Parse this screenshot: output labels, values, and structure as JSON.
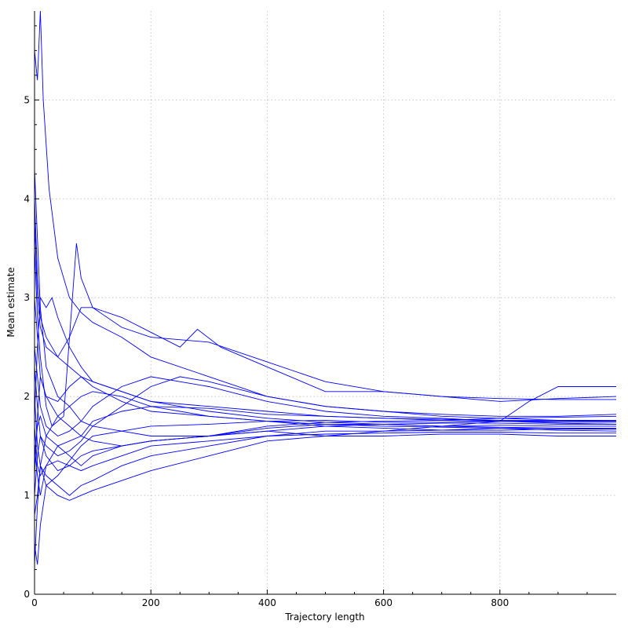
{
  "chart_data": {
    "type": "line",
    "xlabel": "Trajectory length",
    "ylabel": "Mean estimate",
    "xlim": [
      0,
      1000
    ],
    "ylim": [
      0,
      5.9
    ],
    "x_ticks": [
      0,
      200,
      400,
      600,
      800
    ],
    "y_ticks": [
      0,
      1,
      2,
      3,
      4,
      5
    ],
    "grid": true,
    "legend": "none",
    "line_color": "#0000ff",
    "series": [
      {
        "x": [
          0,
          5,
          10,
          15,
          25,
          40,
          60,
          80,
          100,
          150,
          200,
          300,
          400,
          500,
          600,
          700,
          800,
          900,
          1000
        ],
        "y": [
          5.5,
          5.2,
          5.9,
          5.0,
          4.1,
          3.4,
          3.0,
          2.85,
          2.75,
          2.6,
          2.4,
          2.2,
          2.0,
          1.9,
          1.85,
          1.8,
          1.78,
          1.76,
          1.75
        ]
      },
      {
        "x": [
          0,
          5,
          10,
          20,
          30,
          50,
          72,
          80,
          100,
          150,
          200,
          300,
          400,
          500,
          600,
          700,
          800,
          900,
          1000
        ],
        "y": [
          3.5,
          2.8,
          2.4,
          1.9,
          1.7,
          1.8,
          3.55,
          3.2,
          2.9,
          2.7,
          2.6,
          2.55,
          2.35,
          2.15,
          2.05,
          2.0,
          1.98,
          1.97,
          1.97
        ]
      },
      {
        "x": [
          0,
          5,
          10,
          20,
          40,
          60,
          80,
          100,
          150,
          200,
          250,
          280,
          320,
          400,
          500,
          600,
          700,
          800,
          900,
          1000
        ],
        "y": [
          4.0,
          3.2,
          2.8,
          2.6,
          2.4,
          2.6,
          2.9,
          2.9,
          2.8,
          2.65,
          2.5,
          2.68,
          2.5,
          2.3,
          2.05,
          2.05,
          2.0,
          1.95,
          1.98,
          2.0
        ]
      },
      {
        "x": [
          0,
          5,
          10,
          20,
          40,
          60,
          80,
          100,
          150,
          200,
          300,
          400,
          500,
          600,
          700,
          800,
          850,
          900,
          1000
        ],
        "y": [
          1.5,
          1.2,
          1.0,
          1.3,
          1.5,
          1.4,
          1.3,
          1.4,
          1.5,
          1.55,
          1.6,
          1.65,
          1.6,
          1.65,
          1.7,
          1.75,
          1.95,
          2.1,
          2.1
        ]
      },
      {
        "x": [
          0,
          5,
          10,
          20,
          40,
          60,
          80,
          100,
          150,
          200,
          300,
          400,
          500,
          600,
          700,
          800,
          900,
          1000
        ],
        "y": [
          0.5,
          0.3,
          0.7,
          1.1,
          1.0,
          0.95,
          1.0,
          1.05,
          1.15,
          1.25,
          1.4,
          1.55,
          1.6,
          1.6,
          1.62,
          1.62,
          1.6,
          1.6
        ]
      },
      {
        "x": [
          0,
          5,
          10,
          20,
          40,
          60,
          80,
          100,
          150,
          200,
          300,
          400,
          500,
          600,
          700,
          800,
          900,
          1000
        ],
        "y": [
          0.3,
          0.9,
          1.3,
          1.2,
          1.1,
          1.0,
          1.1,
          1.15,
          1.3,
          1.4,
          1.5,
          1.6,
          1.65,
          1.65,
          1.66,
          1.68,
          1.66,
          1.65
        ]
      },
      {
        "x": [
          0,
          5,
          10,
          20,
          40,
          60,
          80,
          100,
          150,
          200,
          300,
          400,
          500,
          600,
          700,
          800,
          900,
          1000
        ],
        "y": [
          2.3,
          1.9,
          1.6,
          1.4,
          1.25,
          1.3,
          1.4,
          1.45,
          1.5,
          1.55,
          1.6,
          1.65,
          1.7,
          1.72,
          1.7,
          1.71,
          1.7,
          1.7
        ]
      },
      {
        "x": [
          0,
          5,
          10,
          20,
          40,
          60,
          80,
          100,
          150,
          200,
          300,
          400,
          500,
          600,
          700,
          800,
          900,
          1000
        ],
        "y": [
          4.3,
          3.6,
          2.9,
          2.3,
          2.0,
          1.9,
          1.75,
          1.7,
          1.65,
          1.6,
          1.6,
          1.68,
          1.72,
          1.72,
          1.73,
          1.73,
          1.72,
          1.72
        ]
      },
      {
        "x": [
          0,
          5,
          10,
          20,
          30,
          40,
          60,
          80,
          100,
          150,
          200,
          300,
          400,
          500,
          600,
          700,
          800,
          900,
          1000
        ],
        "y": [
          1.8,
          2.5,
          3.0,
          2.9,
          3.0,
          2.8,
          2.5,
          2.3,
          2.15,
          2.05,
          1.95,
          1.9,
          1.85,
          1.8,
          1.78,
          1.76,
          1.75,
          1.75,
          1.75
        ]
      },
      {
        "x": [
          0,
          5,
          10,
          20,
          40,
          60,
          80,
          100,
          150,
          200,
          300,
          400,
          500,
          600,
          700,
          800,
          900,
          1000
        ],
        "y": [
          1.2,
          1.8,
          2.2,
          2.0,
          1.8,
          1.7,
          1.6,
          1.55,
          1.5,
          1.55,
          1.6,
          1.7,
          1.74,
          1.75,
          1.76,
          1.78,
          1.79,
          1.8
        ]
      },
      {
        "x": [
          0,
          5,
          10,
          20,
          40,
          60,
          80,
          100,
          150,
          200,
          300,
          400,
          500,
          600,
          700,
          800,
          900,
          1000
        ],
        "y": [
          2.0,
          1.5,
          1.3,
          1.1,
          1.2,
          1.35,
          1.5,
          1.6,
          1.65,
          1.7,
          1.72,
          1.75,
          1.76,
          1.74,
          1.74,
          1.75,
          1.74,
          1.74
        ]
      },
      {
        "x": [
          0,
          5,
          10,
          20,
          40,
          60,
          80,
          100,
          150,
          200,
          300,
          400,
          500,
          600,
          700,
          800,
          900,
          1000
        ],
        "y": [
          3.0,
          2.6,
          2.2,
          2.0,
          1.95,
          2.1,
          2.2,
          2.1,
          1.95,
          1.85,
          1.8,
          1.75,
          1.72,
          1.7,
          1.69,
          1.68,
          1.68,
          1.67
        ]
      },
      {
        "x": [
          0,
          5,
          10,
          20,
          40,
          60,
          80,
          100,
          150,
          200,
          250,
          300,
          400,
          500,
          600,
          700,
          800,
          900,
          1000
        ],
        "y": [
          1.0,
          1.4,
          1.6,
          1.5,
          1.4,
          1.45,
          1.55,
          1.7,
          1.9,
          2.1,
          2.2,
          2.15,
          2.0,
          1.9,
          1.85,
          1.82,
          1.8,
          1.8,
          1.82
        ]
      },
      {
        "x": [
          0,
          5,
          10,
          20,
          40,
          60,
          80,
          100,
          150,
          200,
          300,
          400,
          500,
          600,
          700,
          800,
          900,
          1000
        ],
        "y": [
          2.5,
          2.2,
          1.9,
          1.7,
          1.6,
          1.65,
          1.75,
          1.9,
          2.1,
          2.2,
          2.1,
          1.95,
          1.85,
          1.8,
          1.78,
          1.75,
          1.73,
          1.72
        ]
      },
      {
        "x": [
          0,
          5,
          10,
          20,
          40,
          60,
          80,
          100,
          150,
          200,
          300,
          400,
          500,
          600,
          700,
          800,
          900,
          1000
        ],
        "y": [
          1.7,
          1.3,
          1.2,
          1.3,
          1.35,
          1.3,
          1.25,
          1.3,
          1.4,
          1.5,
          1.55,
          1.6,
          1.62,
          1.63,
          1.64,
          1.64,
          1.63,
          1.63
        ]
      },
      {
        "x": [
          0,
          5,
          10,
          20,
          40,
          60,
          80,
          100,
          150,
          200,
          300,
          400,
          500,
          600,
          700,
          800,
          900,
          1000
        ],
        "y": [
          3.8,
          3.0,
          2.7,
          2.5,
          2.4,
          2.3,
          2.2,
          2.15,
          2.05,
          1.95,
          1.85,
          1.78,
          1.74,
          1.72,
          1.7,
          1.69,
          1.68,
          1.68
        ]
      },
      {
        "x": [
          0,
          5,
          10,
          20,
          40,
          60,
          80,
          100,
          150,
          200,
          300,
          400,
          500,
          600,
          700,
          800,
          900,
          1000
        ],
        "y": [
          1.4,
          1.7,
          1.8,
          1.6,
          1.5,
          1.55,
          1.6,
          1.75,
          1.85,
          1.9,
          1.88,
          1.82,
          1.8,
          1.78,
          1.77,
          1.76,
          1.76,
          1.76
        ]
      },
      {
        "x": [
          0,
          5,
          10,
          20,
          40,
          60,
          80,
          100,
          150,
          200,
          300,
          400,
          500,
          600,
          700,
          800,
          900,
          1000
        ],
        "y": [
          0.8,
          1.0,
          1.3,
          1.6,
          1.8,
          1.9,
          2.0,
          2.05,
          2.0,
          1.9,
          1.8,
          1.75,
          1.7,
          1.68,
          1.66,
          1.66,
          1.67,
          1.67
        ]
      }
    ]
  }
}
